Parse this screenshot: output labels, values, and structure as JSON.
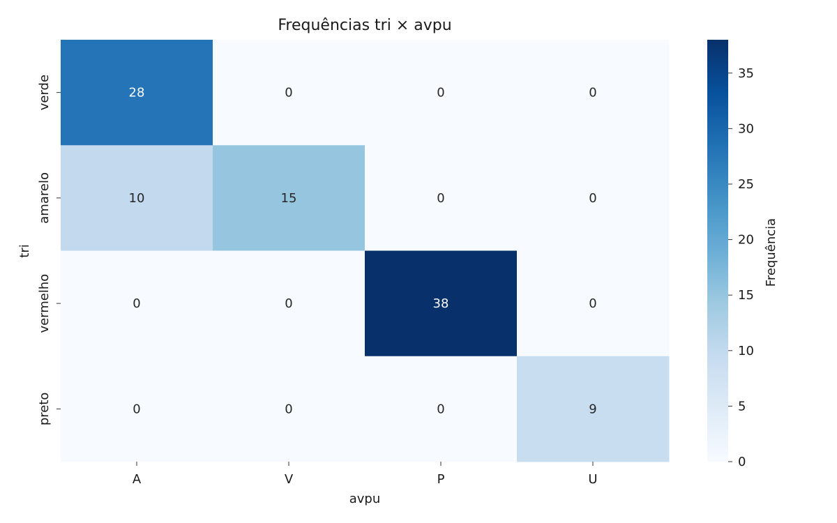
{
  "chart_data": {
    "type": "heatmap",
    "title": "Frequências tri × avpu",
    "xlabel": "avpu",
    "ylabel": "tri",
    "x_categories": [
      "A",
      "V",
      "P",
      "U"
    ],
    "y_categories": [
      "verde",
      "amarelo",
      "vermelho",
      "preto"
    ],
    "values": [
      [
        28,
        0,
        0,
        0
      ],
      [
        10,
        15,
        0,
        0
      ],
      [
        0,
        0,
        38,
        0
      ],
      [
        0,
        0,
        0,
        9
      ]
    ],
    "colorbar": {
      "label": "Frequência",
      "range": [
        0,
        38
      ],
      "ticks": [
        0,
        5,
        10,
        15,
        20,
        25,
        30,
        35
      ],
      "colormap": "Blues"
    },
    "annotations": true,
    "grid": false
  }
}
